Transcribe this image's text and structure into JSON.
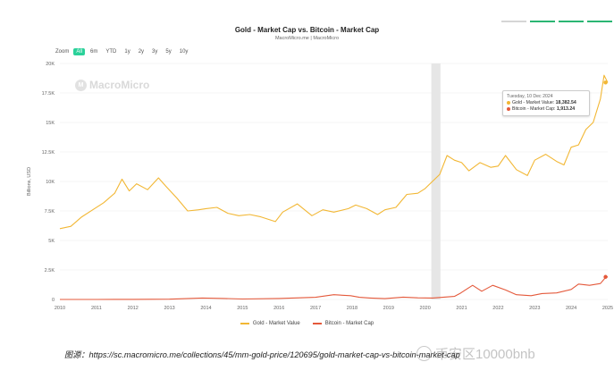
{
  "header": {
    "title": "Gold - Market Cap vs. Bitcoin - Market Cap",
    "subtitle": "MacroMicro.me | MacroMicro"
  },
  "colors": {
    "gold": "#f2b734",
    "bitcoin": "#e4593b",
    "zoom_active": "#2bd19a",
    "highlight_band": "#e6e6e6",
    "topbar": [
      "#d5d5d5",
      "#2bb673",
      "#2bb673",
      "#2bb673"
    ]
  },
  "zoom": {
    "label": "Zoom",
    "buttons": [
      "All",
      "6m",
      "YTD",
      "1y",
      "2y",
      "3y",
      "5y",
      "10y"
    ],
    "active": "All"
  },
  "watermark": {
    "text": "MacroMicro"
  },
  "tooltip": {
    "date": "Tuesday, 10 Dec 2024",
    "rows": [
      {
        "label": "Gold - Market Value:",
        "value": "18,382.54"
      },
      {
        "label": "Bitcoin - Market Cap:",
        "value": "1,913.24"
      }
    ]
  },
  "legend": [
    {
      "name": "Gold - Market Value",
      "icon": "gold-line-swatch"
    },
    {
      "name": "Bitcoin - Market Cap",
      "icon": "bitcoin-line-swatch"
    }
  ],
  "caption": "图源：https://sc.macromicro.me/collections/45/mm-gold-price/120695/gold-market-cap-vs-bitcoin-market-cap",
  "overlay_watermark": "币安区10000bnb",
  "chart_data": {
    "type": "line",
    "title": "Gold - Market Cap vs. Bitcoin - Market Cap",
    "ylabel": "Billions, USD",
    "xlabel": "",
    "ylim": [
      0,
      20000
    ],
    "xlim": [
      2010.0,
      2025.0
    ],
    "yticks": [
      0,
      2500,
      5000,
      7500,
      10000,
      12500,
      15000,
      17500,
      20000
    ],
    "ytick_labels": [
      "0",
      "2.5K",
      "5K",
      "7.5K",
      "10K",
      "12.5K",
      "15K",
      "17.5K",
      "20K"
    ],
    "xticks": [
      2010,
      2011,
      2012,
      2013,
      2014,
      2015,
      2016,
      2017,
      2018,
      2019,
      2020,
      2021,
      2022,
      2023,
      2024,
      2025
    ],
    "grid": true,
    "legend_position": "bottom",
    "highlight_band": [
      2020.17,
      2020.42
    ],
    "series": [
      {
        "name": "Gold - Market Value",
        "x": [
          2010.0,
          2010.3,
          2010.6,
          2010.9,
          2011.2,
          2011.5,
          2011.7,
          2011.9,
          2012.1,
          2012.4,
          2012.7,
          2012.9,
          2013.2,
          2013.5,
          2013.8,
          2014.0,
          2014.3,
          2014.6,
          2014.9,
          2015.2,
          2015.5,
          2015.9,
          2016.1,
          2016.5,
          2016.9,
          2017.2,
          2017.5,
          2017.9,
          2018.1,
          2018.4,
          2018.7,
          2018.9,
          2019.2,
          2019.5,
          2019.8,
          2020.0,
          2020.2,
          2020.4,
          2020.6,
          2020.8,
          2021.0,
          2021.2,
          2021.5,
          2021.8,
          2022.0,
          2022.2,
          2022.5,
          2022.8,
          2023.0,
          2023.3,
          2023.6,
          2023.8,
          2024.0,
          2024.2,
          2024.4,
          2024.6,
          2024.8,
          2024.9,
          2025.0
        ],
        "values": [
          6000,
          6200,
          7000,
          7600,
          8200,
          9000,
          10200,
          9200,
          9800,
          9300,
          10300,
          9600,
          8600,
          7500,
          7600,
          7700,
          7800,
          7300,
          7100,
          7200,
          7000,
          6600,
          7400,
          8100,
          7100,
          7600,
          7400,
          7700,
          8000,
          7700,
          7200,
          7600,
          7800,
          8900,
          9000,
          9400,
          10000,
          10600,
          12200,
          11800,
          11600,
          10900,
          11600,
          11200,
          11300,
          12200,
          11000,
          10500,
          11800,
          12300,
          11700,
          11400,
          12900,
          13100,
          14400,
          15000,
          17000,
          19000,
          18382.54
        ]
      },
      {
        "name": "Bitcoin - Market Cap",
        "x": [
          2010.0,
          2011.0,
          2012.0,
          2013.0,
          2013.9,
          2014.5,
          2015.0,
          2016.0,
          2017.0,
          2017.5,
          2017.96,
          2018.2,
          2018.5,
          2018.9,
          2019.4,
          2019.8,
          2020.2,
          2020.8,
          2020.95,
          2021.1,
          2021.3,
          2021.55,
          2021.85,
          2022.2,
          2022.5,
          2022.9,
          2023.2,
          2023.6,
          2024.0,
          2024.2,
          2024.5,
          2024.8,
          2024.95,
          2025.0
        ],
        "values": [
          0,
          2,
          10,
          20,
          120,
          80,
          40,
          80,
          180,
          400,
          320,
          180,
          120,
          70,
          200,
          140,
          120,
          260,
          500,
          800,
          1200,
          700,
          1200,
          800,
          400,
          320,
          500,
          550,
          850,
          1300,
          1200,
          1350,
          1900,
          1913.24
        ]
      }
    ],
    "tooltip_point": {
      "x": 2024.94,
      "gold": 18382.54,
      "bitcoin": 1913.24
    }
  }
}
